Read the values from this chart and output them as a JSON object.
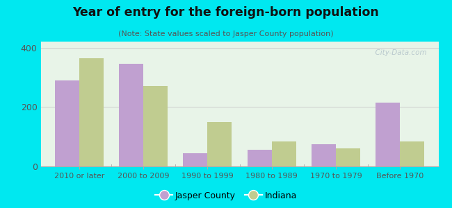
{
  "title": "Year of entry for the foreign-born population",
  "subtitle": "(Note: State values scaled to Jasper County population)",
  "categories": [
    "2010 or later",
    "2000 to 2009",
    "1990 to 1999",
    "1980 to 1989",
    "1970 to 1979",
    "Before 1970"
  ],
  "jasper_values": [
    290,
    345,
    45,
    55,
    75,
    215
  ],
  "indiana_values": [
    365,
    270,
    150,
    85,
    60,
    85
  ],
  "jasper_color": "#c0a0d0",
  "indiana_color": "#c0cc90",
  "background_color": "#00e8f0",
  "plot_bg_top": "#e8f4e8",
  "plot_bg_bottom": "#d8eee0",
  "ylim": [
    0,
    420
  ],
  "yticks": [
    0,
    200,
    400
  ],
  "bar_width": 0.38,
  "watermark": "  City-Data.com",
  "legend_jasper": "Jasper County",
  "legend_indiana": "Indiana"
}
